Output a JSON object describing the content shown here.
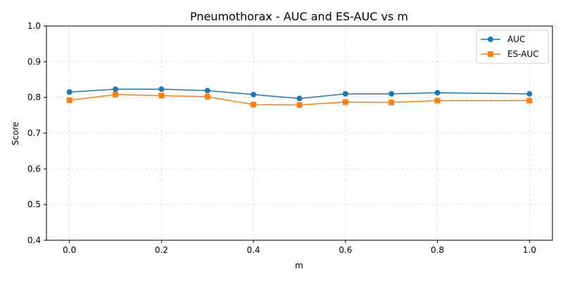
{
  "chart_data": {
    "type": "line",
    "title": "Pneumothorax - AUC and ES-AUC vs m",
    "xlabel": "m",
    "ylabel": "Score",
    "x": [
      0.0,
      0.1,
      0.2,
      0.3,
      0.4,
      0.5,
      0.6,
      0.7,
      0.8,
      1.0
    ],
    "xlim": [
      -0.05,
      1.05
    ],
    "ylim": [
      0.4,
      1.0
    ],
    "xticks": [
      0.0,
      0.2,
      0.4,
      0.6,
      0.8,
      1.0
    ],
    "xtick_labels": [
      "0.0",
      "0.2",
      "0.4",
      "0.6",
      "0.8",
      "1.0"
    ],
    "yticks": [
      0.4,
      0.5,
      0.6,
      0.7,
      0.8,
      0.9,
      1.0
    ],
    "ytick_labels": [
      "0.4",
      "0.5",
      "0.6",
      "0.7",
      "0.8",
      "0.9",
      "1.0"
    ],
    "grid": true,
    "legend_position": "top-right",
    "series": [
      {
        "name": "AUC",
        "color": "#1f77b4",
        "marker": "circle",
        "values": [
          0.815,
          0.823,
          0.823,
          0.819,
          0.808,
          0.797,
          0.81,
          0.81,
          0.813,
          0.81
        ]
      },
      {
        "name": "ES-AUC",
        "color": "#ff7f0e",
        "marker": "square",
        "values": [
          0.792,
          0.808,
          0.805,
          0.802,
          0.78,
          0.779,
          0.787,
          0.786,
          0.791,
          0.791
        ]
      }
    ]
  }
}
